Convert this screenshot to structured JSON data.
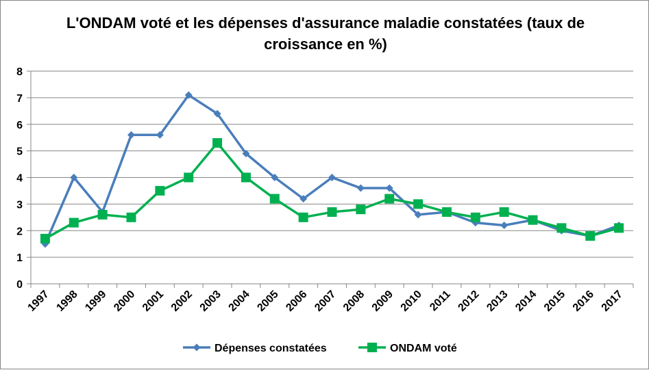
{
  "chart_data": {
    "type": "line",
    "title_lines": [
      "L'ONDAM voté et les dépenses d'assurance maladie constatées (taux de",
      "croissance en %)"
    ],
    "categories": [
      "1997",
      "1998",
      "1999",
      "2000",
      "2001",
      "2002",
      "2003",
      "2004",
      "2005",
      "2006",
      "2007",
      "2008",
      "2009",
      "2010",
      "2011",
      "2012",
      "2013",
      "2014",
      "2015",
      "2016",
      "2017"
    ],
    "ylim": [
      0,
      8
    ],
    "yticks": [
      "0",
      "1",
      "2",
      "3",
      "4",
      "5",
      "6",
      "7",
      "8"
    ],
    "grid": true,
    "legend_position": "bottom",
    "series": [
      {
        "name": "Dépenses constatées",
        "color": "#4A7EBB",
        "marker": "diamond",
        "values": [
          1.5,
          4.0,
          2.7,
          5.6,
          5.6,
          7.1,
          6.4,
          4.9,
          4.0,
          3.2,
          4.0,
          3.6,
          3.6,
          2.6,
          2.7,
          2.3,
          2.2,
          2.4,
          2.0,
          1.8,
          2.2
        ]
      },
      {
        "name": "ONDAM voté",
        "color": "#00B050",
        "marker": "square",
        "values": [
          1.7,
          2.3,
          2.6,
          2.5,
          3.5,
          4.0,
          5.3,
          4.0,
          3.2,
          2.5,
          2.7,
          2.8,
          3.2,
          3.0,
          2.7,
          2.5,
          2.7,
          2.4,
          2.1,
          1.8,
          2.1
        ]
      }
    ]
  }
}
